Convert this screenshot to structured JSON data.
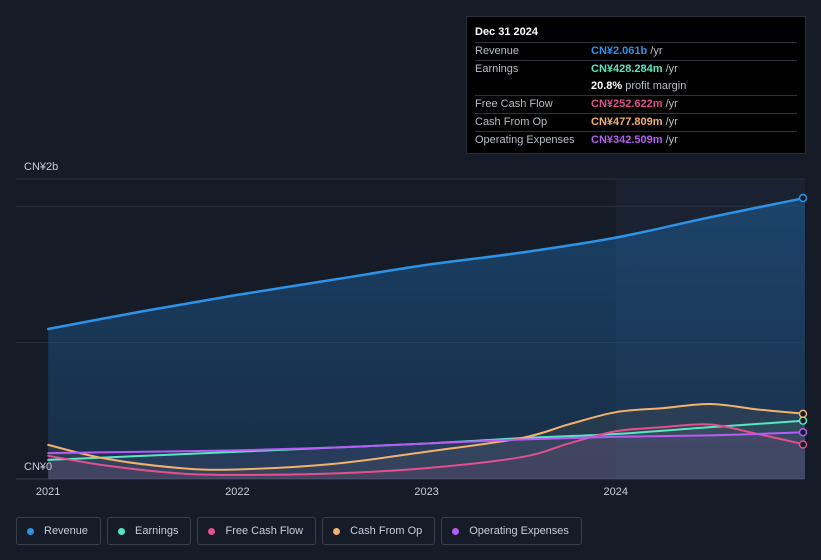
{
  "tooltip": {
    "date": "Dec 31 2024",
    "rows": [
      {
        "label": "Revenue",
        "value": "CN¥2.061b",
        "unit": "/yr",
        "color": "#2d93e6"
      },
      {
        "label": "Earnings",
        "value": "CN¥428.284m",
        "unit": "/yr",
        "color": "#58e6c1"
      },
      {
        "label": "",
        "value": "20.8%",
        "unit": "profit margin",
        "color": "#ffffff"
      },
      {
        "label": "Free Cash Flow",
        "value": "CN¥252.622m",
        "unit": "/yr",
        "color": "#e2508d"
      },
      {
        "label": "Cash From Op",
        "value": "CN¥477.809m",
        "unit": "/yr",
        "color": "#f2b26b"
      },
      {
        "label": "Operating Expenses",
        "value": "CN¥342.509m",
        "unit": "/yr",
        "color": "#b65cf5"
      }
    ]
  },
  "legend": [
    {
      "label": "Revenue",
      "color": "#2d93e6"
    },
    {
      "label": "Earnings",
      "color": "#58e6c1"
    },
    {
      "label": "Free Cash Flow",
      "color": "#e2508d"
    },
    {
      "label": "Cash From Op",
      "color": "#f2b26b"
    },
    {
      "label": "Operating Expenses",
      "color": "#b65cf5"
    }
  ],
  "chart_data": {
    "type": "line",
    "y_tick_labels": [
      "CN¥2b",
      "CN¥0"
    ],
    "x_tick_labels": [
      "2021",
      "2022",
      "2023",
      "2024"
    ],
    "x_ticks": [
      2021.0,
      2022.0,
      2023.0,
      2024.0
    ],
    "xlim": [
      2020.83,
      2025.0
    ],
    "ylim": [
      0,
      2.2
    ],
    "y_unit": "CN¥ billions",
    "highlight_range": [
      2024.0,
      2025.0
    ],
    "series": [
      {
        "name": "Revenue",
        "color": "#2d93e6",
        "fill": true,
        "x": [
          2021.0,
          2021.5,
          2022.0,
          2022.5,
          2023.0,
          2023.5,
          2024.0,
          2024.5,
          2025.0
        ],
        "y": [
          1.1,
          1.23,
          1.35,
          1.46,
          1.57,
          1.66,
          1.77,
          1.92,
          2.061
        ]
      },
      {
        "name": "Earnings",
        "color": "#58e6c1",
        "x": [
          2021.0,
          2021.5,
          2022.0,
          2022.5,
          2023.0,
          2023.5,
          2024.0,
          2024.5,
          2025.0
        ],
        "y": [
          0.14,
          0.17,
          0.2,
          0.23,
          0.26,
          0.3,
          0.33,
          0.38,
          0.428
        ]
      },
      {
        "name": "Free Cash Flow",
        "color": "#e2508d",
        "x": [
          2021.0,
          2021.3,
          2021.7,
          2022.0,
          2022.5,
          2023.0,
          2023.5,
          2023.75,
          2024.0,
          2024.25,
          2024.5,
          2024.75,
          2025.0
        ],
        "y": [
          0.17,
          0.1,
          0.04,
          0.03,
          0.04,
          0.08,
          0.16,
          0.26,
          0.35,
          0.38,
          0.4,
          0.33,
          0.253
        ]
      },
      {
        "name": "Cash From Op",
        "color": "#f2b26b",
        "x": [
          2021.0,
          2021.3,
          2021.7,
          2022.0,
          2022.5,
          2023.0,
          2023.5,
          2023.75,
          2024.0,
          2024.25,
          2024.5,
          2024.75,
          2025.0
        ],
        "y": [
          0.25,
          0.15,
          0.08,
          0.07,
          0.11,
          0.2,
          0.3,
          0.4,
          0.49,
          0.52,
          0.55,
          0.51,
          0.478
        ]
      },
      {
        "name": "Operating Expenses",
        "color": "#b65cf5",
        "x": [
          2021.0,
          2021.5,
          2022.0,
          2022.5,
          2023.0,
          2023.5,
          2024.0,
          2024.5,
          2025.0
        ],
        "y": [
          0.19,
          0.2,
          0.21,
          0.23,
          0.26,
          0.29,
          0.31,
          0.32,
          0.343
        ]
      }
    ]
  }
}
